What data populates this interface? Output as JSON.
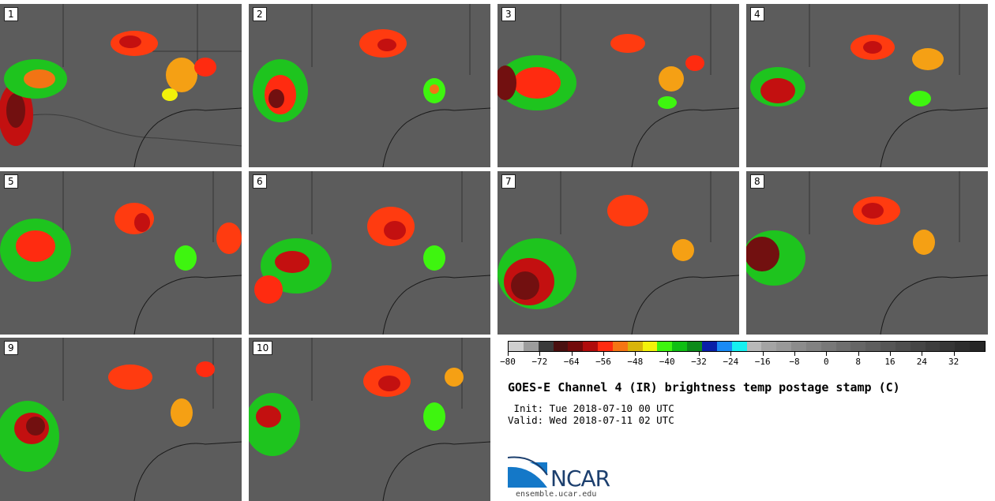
{
  "panels": [
    {
      "label": "1"
    },
    {
      "label": "2"
    },
    {
      "label": "3"
    },
    {
      "label": "4"
    },
    {
      "label": "5"
    },
    {
      "label": "6"
    },
    {
      "label": "7"
    },
    {
      "label": "8"
    },
    {
      "label": "9"
    },
    {
      "label": "10"
    }
  ],
  "colorbar": {
    "colors": [
      "#cfcfcf",
      "#9c9c9c",
      "#3a3a3a",
      "#4a1010",
      "#720a0a",
      "#b00c0c",
      "#ff2b10",
      "#f57514",
      "#d8b40a",
      "#f2f20a",
      "#3ef50f",
      "#0fbf14",
      "#0c8a1a",
      "#0a20a8",
      "#1a8af5",
      "#16f0f0",
      "#b8b8b8",
      "#a4a4a4",
      "#999999",
      "#8c8c8c",
      "#828282",
      "#787878",
      "#6e6e6e",
      "#666666",
      "#5e5e5e",
      "#565656",
      "#4e4e4e",
      "#464646",
      "#3e3e3e",
      "#363636",
      "#2e2e2e",
      "#262626"
    ],
    "min": -80,
    "max": 40,
    "tick_labels": [
      "-80",
      "-72",
      "-64",
      "-56",
      "-48",
      "-40",
      "-32",
      "-24",
      "-16",
      "-8",
      "0",
      "8",
      "16",
      "24",
      "32"
    ]
  },
  "title": "GOES-E Channel 4 (IR) brightness temp postage stamp (C)",
  "init_line": " Init: Tue 2018-07-10 00 UTC",
  "valid_line": "Valid: Wed 2018-07-11 02 UTC",
  "logo": {
    "name": "NCAR",
    "url": "ensemble.ucar.edu"
  }
}
